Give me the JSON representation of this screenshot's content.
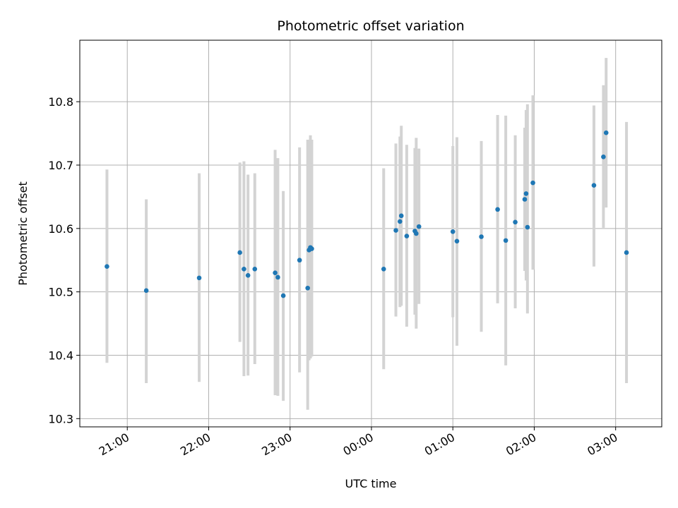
{
  "chart_data": {
    "type": "scatter",
    "title": "Photometric offset variation",
    "xlabel": "UTC time",
    "ylabel": "Photometric offset",
    "x_axis_type": "time",
    "xlim": [
      "20:25",
      "03:34"
    ],
    "ylim": [
      10.287,
      10.897
    ],
    "grid": true,
    "colors": {
      "marker": "#1f77b4",
      "errorbar": "#d3d3d3",
      "grid": "#b0b0b0"
    },
    "xticks": [
      {
        "time": "21:00",
        "label": "21:00"
      },
      {
        "time": "22:00",
        "label": "22:00"
      },
      {
        "time": "23:00",
        "label": "23:00"
      },
      {
        "time": "00:00",
        "label": "00:00"
      },
      {
        "time": "01:00",
        "label": "01:00"
      },
      {
        "time": "02:00",
        "label": "02:00"
      },
      {
        "time": "03:00",
        "label": "03:00"
      }
    ],
    "yticks": [
      {
        "value": 10.3,
        "label": "10.3"
      },
      {
        "value": 10.4,
        "label": "10.4"
      },
      {
        "value": 10.5,
        "label": "10.5"
      },
      {
        "value": 10.6,
        "label": "10.6"
      },
      {
        "value": 10.7,
        "label": "10.7"
      },
      {
        "value": 10.8,
        "label": "10.8"
      }
    ],
    "points": [
      {
        "time": "20:45",
        "y": 10.54,
        "err_low": 10.388,
        "err_high": 10.693
      },
      {
        "time": "21:14",
        "y": 10.502,
        "err_low": 10.356,
        "err_high": 10.646
      },
      {
        "time": "21:53",
        "y": 10.522,
        "err_low": 10.358,
        "err_high": 10.687
      },
      {
        "time": "22:23",
        "y": 10.562,
        "err_low": 10.421,
        "err_high": 10.704
      },
      {
        "time": "22:26",
        "y": 10.536,
        "err_low": 10.367,
        "err_high": 10.706
      },
      {
        "time": "22:29",
        "y": 10.526,
        "err_low": 10.368,
        "err_high": 10.685
      },
      {
        "time": "22:34",
        "y": 10.536,
        "err_low": 10.386,
        "err_high": 10.687
      },
      {
        "time": "22:49",
        "y": 10.53,
        "err_low": 10.337,
        "err_high": 10.724
      },
      {
        "time": "22:51",
        "y": 10.523,
        "err_low": 10.336,
        "err_high": 10.711
      },
      {
        "time": "22:55",
        "y": 10.494,
        "err_low": 10.328,
        "err_high": 10.659
      },
      {
        "time": "23:07",
        "y": 10.55,
        "err_low": 10.373,
        "err_high": 10.728
      },
      {
        "time": "23:13",
        "y": 10.506,
        "err_low": 10.314,
        "err_high": 10.74
      },
      {
        "time": "23:14",
        "y": 10.566,
        "err_low": 10.392,
        "err_high": 10.74
      },
      {
        "time": "23:15",
        "y": 10.57,
        "err_low": 10.395,
        "err_high": 10.747
      },
      {
        "time": "23:16",
        "y": 10.568,
        "err_low": 10.398,
        "err_high": 10.74
      },
      {
        "time": "00:09",
        "y": 10.536,
        "err_low": 10.378,
        "err_high": 10.695
      },
      {
        "time": "00:18",
        "y": 10.597,
        "err_low": 10.461,
        "err_high": 10.734
      },
      {
        "time": "00:21",
        "y": 10.611,
        "err_low": 10.476,
        "err_high": 10.745
      },
      {
        "time": "00:22",
        "y": 10.62,
        "err_low": 10.478,
        "err_high": 10.762
      },
      {
        "time": "00:26",
        "y": 10.588,
        "err_low": 10.445,
        "err_high": 10.732
      },
      {
        "time": "00:32",
        "y": 10.596,
        "err_low": 10.464,
        "err_high": 10.727
      },
      {
        "time": "00:33",
        "y": 10.592,
        "err_low": 10.442,
        "err_high": 10.743
      },
      {
        "time": "00:35",
        "y": 10.603,
        "err_low": 10.481,
        "err_high": 10.726
      },
      {
        "time": "01:00",
        "y": 10.595,
        "err_low": 10.46,
        "err_high": 10.73
      },
      {
        "time": "01:03",
        "y": 10.58,
        "err_low": 10.415,
        "err_high": 10.744
      },
      {
        "time": "01:21",
        "y": 10.587,
        "err_low": 10.437,
        "err_high": 10.738
      },
      {
        "time": "01:33",
        "y": 10.63,
        "err_low": 10.482,
        "err_high": 10.779
      },
      {
        "time": "01:39",
        "y": 10.581,
        "err_low": 10.384,
        "err_high": 10.778
      },
      {
        "time": "01:46",
        "y": 10.61,
        "err_low": 10.474,
        "err_high": 10.747
      },
      {
        "time": "01:53",
        "y": 10.646,
        "err_low": 10.533,
        "err_high": 10.759
      },
      {
        "time": "01:54",
        "y": 10.655,
        "err_low": 10.518,
        "err_high": 10.787
      },
      {
        "time": "01:55",
        "y": 10.602,
        "err_low": 10.466,
        "err_high": 10.796
      },
      {
        "time": "01:59",
        "y": 10.672,
        "err_low": 10.535,
        "err_high": 10.81
      },
      {
        "time": "02:44",
        "y": 10.668,
        "err_low": 10.54,
        "err_high": 10.794
      },
      {
        "time": "02:51",
        "y": 10.713,
        "err_low": 10.601,
        "err_high": 10.826
      },
      {
        "time": "02:53",
        "y": 10.751,
        "err_low": 10.633,
        "err_high": 10.869
      },
      {
        "time": "03:08",
        "y": 10.562,
        "err_low": 10.356,
        "err_high": 10.768
      }
    ]
  }
}
